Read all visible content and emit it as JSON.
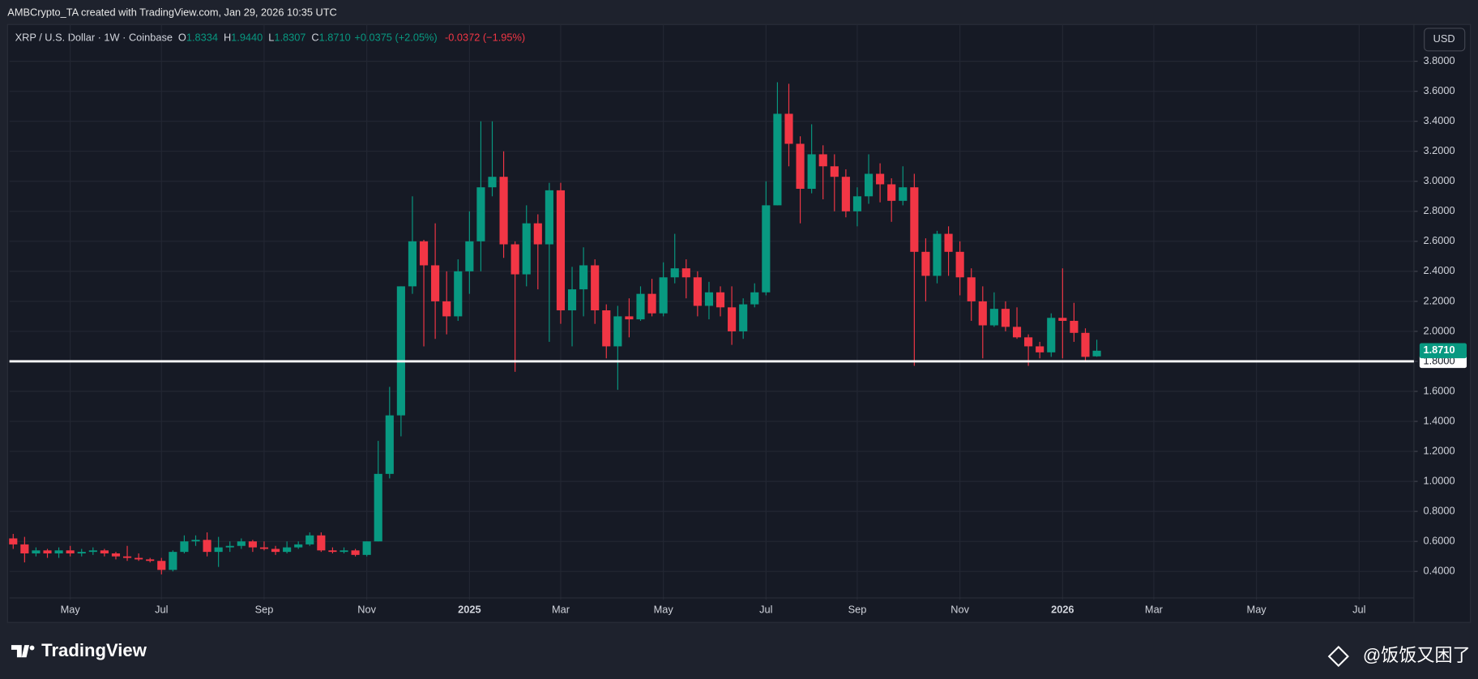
{
  "chart_data": {
    "type": "candlestick",
    "watermark": "AMBCrypto_TA created with TradingView.com, Jan 29, 2026 10:35 UTC",
    "legend": {
      "symbol": "XRP / U.S. Dollar · 1W · Coinbase",
      "o_key": "O",
      "open": "1.8334",
      "h_key": "H",
      "high": "1.9440",
      "l_key": "L",
      "low": "1.8307",
      "c_key": "C",
      "close": "1.8710",
      "change": "+0.0375 (+2.05%)",
      "alt_change": "-0.0372 (−1.95%)"
    },
    "currency": "USD",
    "brand": "TradingView",
    "author_tag": "@饭饭又困了",
    "up_color": "#089981",
    "down_color": "#f23645",
    "open": [
      0.62,
      0.58,
      0.52,
      0.54,
      0.52,
      0.54,
      0.52,
      0.53,
      0.54,
      0.52,
      0.5,
      0.49,
      0.48,
      0.47,
      0.41,
      0.53,
      0.6,
      0.61,
      0.53,
      0.56,
      0.57,
      0.6,
      0.56,
      0.55,
      0.53,
      0.56,
      0.58,
      0.64,
      0.54,
      0.53,
      0.54,
      0.51,
      0.6,
      1.05,
      1.44,
      2.3,
      2.6,
      2.44,
      2.2,
      2.1,
      2.4,
      2.6,
      2.96,
      3.03,
      2.58,
      2.38,
      2.72,
      2.58,
      2.94,
      2.14,
      2.28,
      2.44,
      2.14,
      1.9,
      2.1,
      2.08,
      2.25,
      2.12,
      2.36,
      2.42,
      2.36,
      2.17,
      2.26,
      2.16,
      2.0,
      2.18,
      2.26,
      2.84,
      3.45,
      3.25,
      2.95,
      3.18,
      3.1,
      3.03,
      2.8,
      2.9,
      3.05,
      2.98,
      2.87,
      2.96,
      2.53,
      2.37,
      2.65,
      2.53,
      2.36,
      2.2,
      2.04,
      2.15,
      2.03,
      1.96,
      1.9,
      1.86,
      2.09,
      2.07,
      1.99,
      1.8334
    ],
    "high": [
      0.65,
      0.63,
      0.56,
      0.55,
      0.56,
      0.57,
      0.55,
      0.56,
      0.55,
      0.53,
      0.57,
      0.52,
      0.49,
      0.49,
      0.54,
      0.64,
      0.64,
      0.66,
      0.63,
      0.6,
      0.62,
      0.61,
      0.6,
      0.57,
      0.6,
      0.6,
      0.66,
      0.66,
      0.56,
      0.56,
      0.55,
      0.6,
      1.27,
      1.63,
      2.3,
      2.9,
      2.61,
      2.72,
      2.4,
      2.48,
      2.8,
      3.4,
      3.4,
      3.2,
      2.6,
      2.84,
      2.78,
      2.99,
      2.99,
      2.43,
      2.56,
      2.48,
      2.18,
      2.17,
      2.22,
      2.3,
      2.35,
      2.46,
      2.65,
      2.48,
      2.4,
      2.33,
      2.3,
      2.3,
      2.22,
      2.32,
      3.0,
      3.66,
      3.65,
      3.3,
      3.38,
      3.24,
      3.18,
      3.08,
      2.96,
      3.18,
      3.12,
      3.02,
      3.1,
      3.05,
      2.62,
      2.67,
      2.7,
      2.6,
      2.42,
      2.3,
      2.26,
      2.2,
      2.16,
      1.98,
      1.93,
      2.12,
      2.42,
      2.19,
      2.02,
      1.944
    ],
    "low": [
      0.55,
      0.46,
      0.5,
      0.49,
      0.49,
      0.5,
      0.5,
      0.51,
      0.5,
      0.48,
      0.47,
      0.47,
      0.46,
      0.38,
      0.4,
      0.52,
      0.57,
      0.5,
      0.43,
      0.53,
      0.55,
      0.53,
      0.54,
      0.51,
      0.52,
      0.55,
      0.57,
      0.53,
      0.52,
      0.52,
      0.5,
      0.5,
      0.6,
      1.02,
      1.3,
      2.25,
      1.9,
      1.95,
      1.98,
      2.07,
      2.25,
      2.4,
      2.9,
      2.49,
      1.73,
      2.3,
      2.28,
      1.93,
      2.05,
      1.9,
      2.1,
      2.05,
      1.82,
      1.61,
      1.96,
      2.07,
      2.1,
      2.1,
      2.32,
      2.22,
      2.1,
      2.08,
      2.1,
      1.91,
      1.95,
      2.16,
      2.24,
      2.84,
      3.1,
      2.72,
      2.92,
      2.88,
      2.8,
      2.76,
      2.7,
      2.85,
      2.86,
      2.73,
      2.84,
      1.77,
      2.2,
      2.32,
      2.37,
      2.24,
      2.07,
      1.82,
      2.03,
      2.0,
      1.95,
      1.77,
      1.82,
      1.83,
      1.82,
      1.93,
      1.8,
      1.8307
    ],
    "close": [
      0.58,
      0.52,
      0.54,
      0.52,
      0.54,
      0.52,
      0.53,
      0.54,
      0.52,
      0.5,
      0.49,
      0.48,
      0.47,
      0.41,
      0.53,
      0.6,
      0.61,
      0.53,
      0.56,
      0.57,
      0.6,
      0.56,
      0.55,
      0.53,
      0.56,
      0.58,
      0.64,
      0.54,
      0.53,
      0.54,
      0.51,
      0.6,
      1.05,
      1.44,
      2.3,
      2.6,
      2.44,
      2.2,
      2.1,
      2.4,
      2.6,
      2.96,
      3.03,
      2.58,
      2.38,
      2.72,
      2.58,
      2.94,
      2.14,
      2.28,
      2.44,
      2.14,
      1.9,
      2.1,
      2.08,
      2.25,
      2.12,
      2.36,
      2.42,
      2.36,
      2.17,
      2.26,
      2.16,
      2.0,
      2.18,
      2.26,
      2.84,
      3.45,
      3.25,
      2.95,
      3.18,
      3.1,
      3.03,
      2.8,
      2.9,
      3.05,
      2.98,
      2.87,
      2.96,
      2.53,
      2.37,
      2.65,
      2.53,
      2.36,
      2.2,
      2.04,
      2.15,
      2.03,
      1.96,
      1.9,
      1.86,
      2.09,
      2.07,
      1.99,
      1.83,
      1.871
    ],
    "xlim": [
      -0.33,
      122.8
    ],
    "xticks": [
      {
        "value": 5,
        "label": "May"
      },
      {
        "value": 13,
        "label": "Jul"
      },
      {
        "value": 22,
        "label": "Sep"
      },
      {
        "value": 31,
        "label": "Nov"
      },
      {
        "value": 40,
        "label": "2025"
      },
      {
        "value": 48,
        "label": "Mar"
      },
      {
        "value": 57,
        "label": "May"
      },
      {
        "value": 66,
        "label": "Jul"
      },
      {
        "value": 74,
        "label": "Sep"
      },
      {
        "value": 83,
        "label": "Nov"
      },
      {
        "value": 92,
        "label": "2026"
      },
      {
        "value": 100,
        "label": "Mar"
      },
      {
        "value": 109,
        "label": "May"
      },
      {
        "value": 118,
        "label": "Jul"
      }
    ],
    "ylim": [
      0.06,
      4.045
    ],
    "yticks": [
      {
        "value": 0.4,
        "label": "0.4000"
      },
      {
        "value": 0.6,
        "label": "0.6000"
      },
      {
        "value": 0.8,
        "label": "0.8000"
      },
      {
        "value": 1.0,
        "label": "1.0000"
      },
      {
        "value": 1.2,
        "label": "1.2000"
      },
      {
        "value": 1.4,
        "label": "1.4000"
      },
      {
        "value": 1.6,
        "label": "1.6000"
      },
      {
        "value": 1.8,
        "label": "1.8000"
      },
      {
        "value": 2.0,
        "label": "2.0000"
      },
      {
        "value": 2.2,
        "label": "2.2000"
      },
      {
        "value": 2.4,
        "label": "2.4000"
      },
      {
        "value": 2.6,
        "label": "2.6000"
      },
      {
        "value": 2.8,
        "label": "2.8000"
      },
      {
        "value": 3.0,
        "label": "3.0000"
      },
      {
        "value": 3.2,
        "label": "3.2000"
      },
      {
        "value": 3.4,
        "label": "3.4000"
      },
      {
        "value": 3.6,
        "label": "3.6000"
      },
      {
        "value": 3.8,
        "label": "3.8000"
      }
    ],
    "grid": true,
    "hline": {
      "value": 1.8,
      "label": "1.8000",
      "color": "#ffffff"
    },
    "last_price": {
      "value": 1.871,
      "label": "1.8710"
    }
  }
}
